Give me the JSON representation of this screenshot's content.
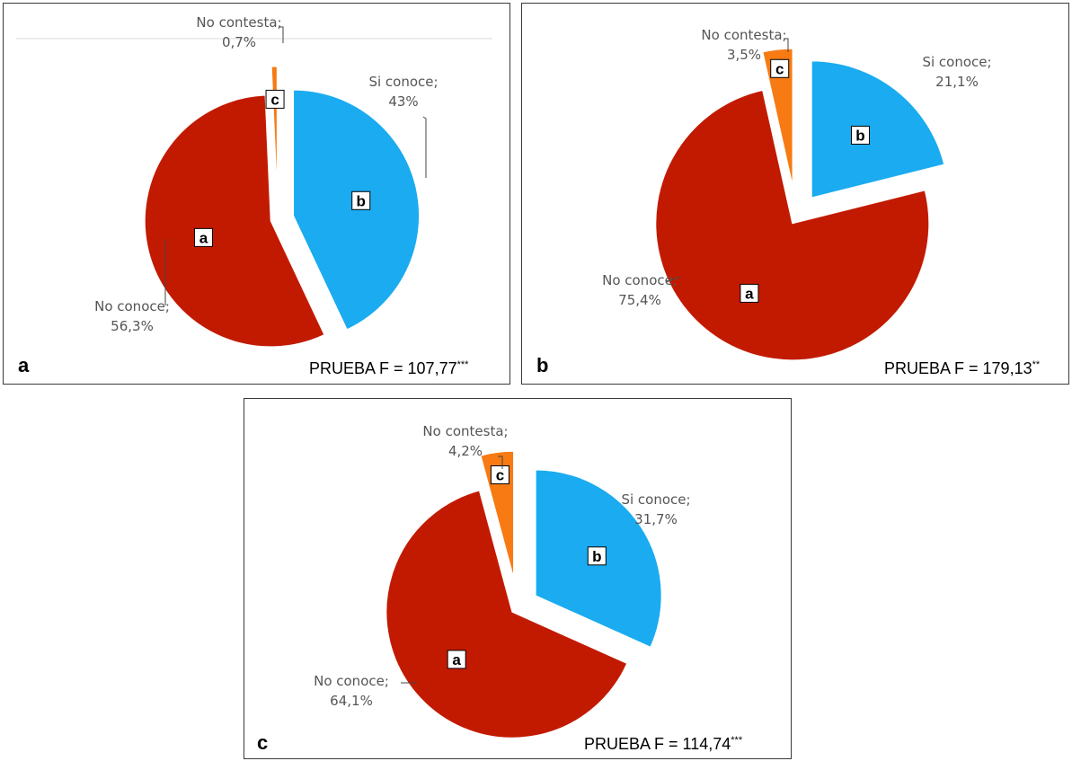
{
  "chart_data": [
    {
      "type": "pie",
      "panel_label": "a",
      "test_text": "PRUEBA F = 107,77",
      "test_stars": "***",
      "slices": [
        {
          "category": "Si conoce",
          "value": 43,
          "value_text": "43%",
          "letter": "b",
          "color": "#1aabf0"
        },
        {
          "category": "No conoce",
          "value": 56.3,
          "value_text": "56,3%",
          "letter": "a",
          "color": "#c21a00"
        },
        {
          "category": "No contesta",
          "value": 0.7,
          "value_text": "0,7%",
          "letter": "c",
          "color": "#f77a12"
        }
      ]
    },
    {
      "type": "pie",
      "panel_label": "b",
      "test_text": "PRUEBA F = 179,13",
      "test_stars": "**",
      "slices": [
        {
          "category": "Si conoce",
          "value": 21.1,
          "value_text": "21,1%",
          "letter": "b",
          "color": "#1aabf0"
        },
        {
          "category": "No conoce",
          "value": 75.4,
          "value_text": "75,4%",
          "letter": "a",
          "color": "#c21a00"
        },
        {
          "category": "No contesta",
          "value": 3.5,
          "value_text": "3,5%",
          "letter": "c",
          "color": "#f77a12"
        }
      ]
    },
    {
      "type": "pie",
      "panel_label": "c",
      "test_text": "PRUEBA F = 114,74",
      "test_stars": "***",
      "slices": [
        {
          "category": "Si conoce",
          "value": 31.7,
          "value_text": "31,7%",
          "letter": "b",
          "color": "#1aabf0"
        },
        {
          "category": "No conoce",
          "value": 64.1,
          "value_text": "64,1%",
          "letter": "a",
          "color": "#c21a00"
        },
        {
          "category": "No contesta",
          "value": 4.2,
          "value_text": "4,2%",
          "letter": "c",
          "color": "#f77a12"
        }
      ]
    }
  ]
}
